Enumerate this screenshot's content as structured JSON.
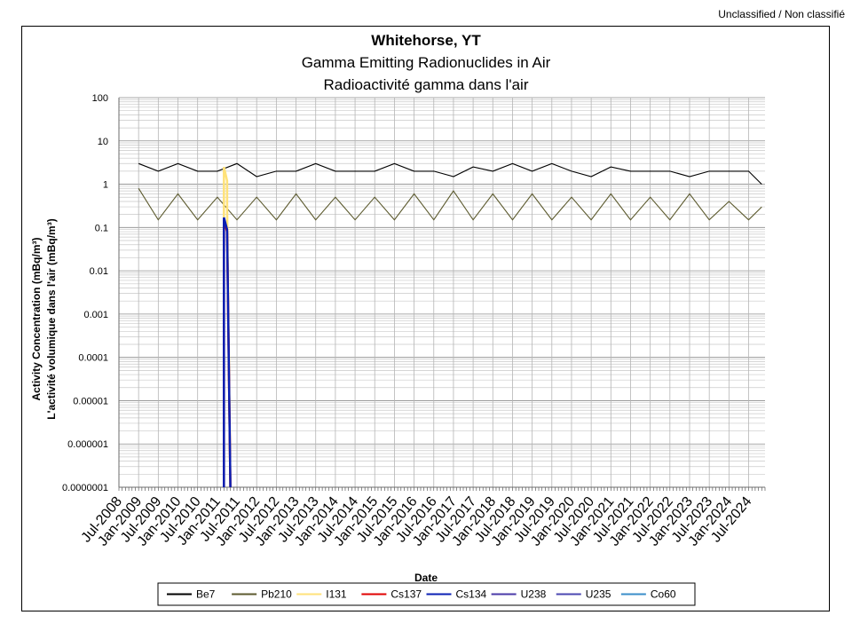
{
  "classification": "Unclassified / Non classifié",
  "chart_data": {
    "type": "line",
    "title": "Whitehorse, YT",
    "subtitle": [
      "Gamma Emitting Radionuclides in Air",
      "Radioactivité gamma dans l'air"
    ],
    "xlabel": "Date",
    "ylabel": [
      "Activity Concentration  (mBq/m³)",
      "L'activité volumique dans l'air (mBq/m³)"
    ],
    "y_scale": "log",
    "ylim": [
      1e-07,
      100
    ],
    "y_ticks": [
      "100",
      "10",
      "1",
      "0.1",
      "0.01",
      "0.001",
      "0.0001",
      "0.00001",
      "0.000001",
      "0.0000001"
    ],
    "xlim": [
      "2008-07",
      "2024-12"
    ],
    "x_ticks": [
      "Jul-2008",
      "Jan-2009",
      "Jul-2009",
      "Jan-2010",
      "Jul-2010",
      "Jan-2011",
      "Jul-2011",
      "Jan-2012",
      "Jul-2012",
      "Jan-2013",
      "Jul-2013",
      "Jan-2014",
      "Jul-2014",
      "Jan-2015",
      "Jul-2015",
      "Jan-2016",
      "Jul-2016",
      "Jan-2017",
      "Jul-2017",
      "Jan-2018",
      "Jul-2018",
      "Jan-2019",
      "Jul-2019",
      "Jan-2020",
      "Jul-2020",
      "Jan-2021",
      "Jul-2021",
      "Jan-2022",
      "Jul-2022",
      "Jan-2023",
      "Jul-2023",
      "Jan-2024",
      "Jul-2024"
    ],
    "grid": true,
    "legend_position": "bottom",
    "series": [
      {
        "name": "Be7",
        "color": "#000000",
        "x": [
          "2009-01",
          "2009-07",
          "2010-01",
          "2010-07",
          "2011-01",
          "2011-07",
          "2012-01",
          "2012-07",
          "2013-01",
          "2013-07",
          "2014-01",
          "2014-07",
          "2015-01",
          "2015-07",
          "2016-01",
          "2016-07",
          "2017-01",
          "2017-07",
          "2018-01",
          "2018-07",
          "2019-01",
          "2019-07",
          "2020-01",
          "2020-07",
          "2021-01",
          "2021-07",
          "2022-01",
          "2022-07",
          "2023-01",
          "2023-07",
          "2024-01",
          "2024-07",
          "2024-11"
        ],
        "y": [
          3,
          2,
          3,
          2,
          2,
          3,
          1.5,
          2,
          2,
          3,
          2,
          2,
          2,
          3,
          2,
          2,
          1.5,
          2.5,
          2,
          3,
          2,
          3,
          2,
          1.5,
          2.5,
          2,
          2,
          2,
          1.5,
          2,
          2,
          2,
          1
        ]
      },
      {
        "name": "Pb210",
        "color": "#5c5a2e",
        "x": [
          "2009-01",
          "2009-07",
          "2010-01",
          "2010-07",
          "2011-01",
          "2011-07",
          "2012-01",
          "2012-07",
          "2013-01",
          "2013-07",
          "2014-01",
          "2014-07",
          "2015-01",
          "2015-07",
          "2016-01",
          "2016-07",
          "2017-01",
          "2017-07",
          "2018-01",
          "2018-07",
          "2019-01",
          "2019-07",
          "2020-01",
          "2020-07",
          "2021-01",
          "2021-07",
          "2022-01",
          "2022-07",
          "2023-01",
          "2023-07",
          "2024-01",
          "2024-07",
          "2024-11"
        ],
        "y": [
          0.8,
          0.15,
          0.6,
          0.15,
          0.5,
          0.15,
          0.5,
          0.15,
          0.6,
          0.15,
          0.5,
          0.15,
          0.5,
          0.15,
          0.6,
          0.15,
          0.7,
          0.15,
          0.6,
          0.15,
          0.6,
          0.15,
          0.5,
          0.15,
          0.6,
          0.15,
          0.5,
          0.15,
          0.6,
          0.15,
          0.4,
          0.15,
          0.3
        ]
      },
      {
        "name": "I131",
        "color": "#ffe27a",
        "x": [
          "2011-03",
          "2011-03",
          "2011-04",
          "2011-04",
          "2011-05"
        ],
        "y": [
          1e-07,
          2.5,
          1.2,
          0.3,
          1e-07
        ]
      },
      {
        "name": "Cs137",
        "color": "#e00000",
        "x": [
          "2011-03",
          "2011-03",
          "2011-04",
          "2011-05"
        ],
        "y": [
          1e-07,
          0.15,
          0.08,
          1e-07
        ]
      },
      {
        "name": "Cs134",
        "color": "#0a1fb4",
        "x": [
          "2011-03",
          "2011-03",
          "2011-04",
          "2011-05"
        ],
        "y": [
          1e-07,
          0.17,
          0.09,
          1e-07
        ]
      },
      {
        "name": "U238",
        "color": "#4a3aa8",
        "x": [],
        "y": []
      },
      {
        "name": "U235",
        "color": "#4b47b0",
        "x": [],
        "y": []
      },
      {
        "name": "Co60",
        "color": "#3a8ec9",
        "x": [],
        "y": []
      }
    ]
  }
}
